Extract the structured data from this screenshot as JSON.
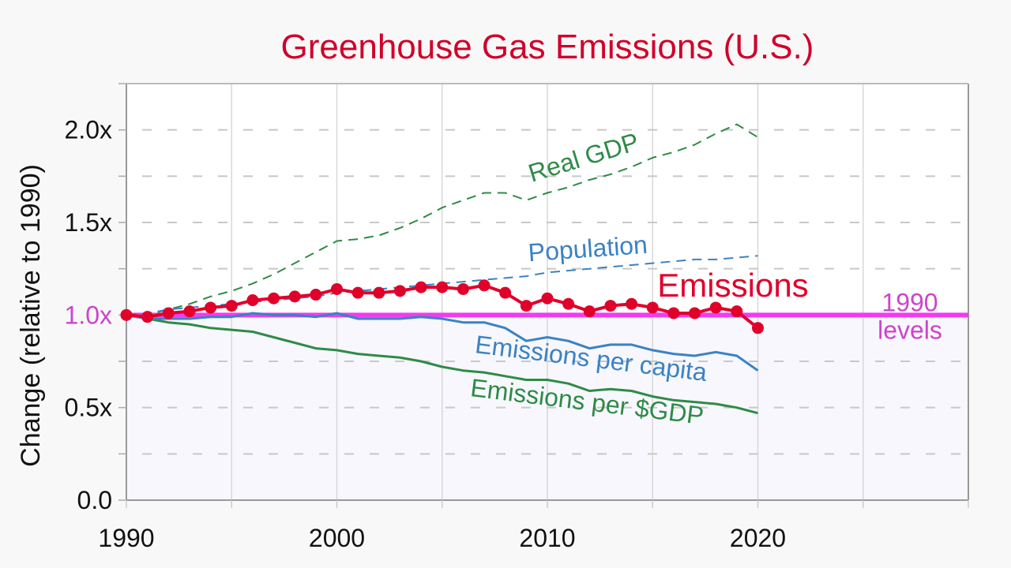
{
  "chart_data": {
    "type": "line",
    "title": "Greenhouse Gas Emissions (U.S.)",
    "xlabel": "",
    "ylabel": "Change (relative to 1990)",
    "xlim": [
      1990,
      2030
    ],
    "ylim": [
      0,
      2.25
    ],
    "x_ticks": [
      1990,
      2000,
      2010,
      2020
    ],
    "x_tick_labels": [
      "1990",
      "2000",
      "2010",
      "2020"
    ],
    "y_ticks": [
      0,
      0.5,
      1.0,
      1.5,
      2.0
    ],
    "y_tick_labels": [
      "0.0",
      "0.5x",
      "1.0x",
      "1.5x",
      "2.0x"
    ],
    "grid": true,
    "reference_line": {
      "value": 1.0,
      "label_line1": "1990",
      "label_line2": "levels",
      "color": "#f03cf0",
      "label_color": "#cc44cc"
    },
    "x": [
      1990,
      1991,
      1992,
      1993,
      1994,
      1995,
      1996,
      1997,
      1998,
      1999,
      2000,
      2001,
      2002,
      2003,
      2004,
      2005,
      2006,
      2007,
      2008,
      2009,
      2010,
      2011,
      2012,
      2013,
      2014,
      2015,
      2016,
      2017,
      2018,
      2019,
      2020
    ],
    "series": [
      {
        "name": "Real GDP",
        "label": "Real GDP",
        "color": "#2e8b46",
        "style": "dashed",
        "values": [
          1.0,
          1.0,
          1.03,
          1.06,
          1.1,
          1.13,
          1.17,
          1.22,
          1.28,
          1.34,
          1.4,
          1.41,
          1.43,
          1.47,
          1.52,
          1.58,
          1.62,
          1.66,
          1.66,
          1.62,
          1.66,
          1.69,
          1.73,
          1.76,
          1.8,
          1.85,
          1.88,
          1.92,
          1.98,
          2.03,
          1.96
        ]
      },
      {
        "name": "Population",
        "label": "Population",
        "color": "#3b82c4",
        "style": "dashed",
        "values": [
          1.0,
          1.01,
          1.03,
          1.04,
          1.05,
          1.06,
          1.07,
          1.08,
          1.09,
          1.1,
          1.12,
          1.13,
          1.14,
          1.15,
          1.16,
          1.17,
          1.18,
          1.19,
          1.2,
          1.21,
          1.23,
          1.24,
          1.25,
          1.26,
          1.27,
          1.28,
          1.29,
          1.3,
          1.3,
          1.31,
          1.32
        ]
      },
      {
        "name": "Emissions",
        "label": "Emissions",
        "color": "#e0002a",
        "style": "solid-markers",
        "values": [
          1.0,
          0.99,
          1.01,
          1.02,
          1.04,
          1.05,
          1.08,
          1.09,
          1.1,
          1.11,
          1.14,
          1.12,
          1.12,
          1.13,
          1.15,
          1.15,
          1.14,
          1.16,
          1.12,
          1.05,
          1.09,
          1.06,
          1.02,
          1.05,
          1.06,
          1.04,
          1.01,
          1.01,
          1.04,
          1.02,
          0.93
        ]
      },
      {
        "name": "Emissions per capita",
        "label": "Emissions per capita",
        "color": "#3b82c4",
        "style": "solid",
        "values": [
          1.0,
          0.98,
          0.98,
          0.98,
          0.99,
          0.99,
          1.01,
          1.0,
          1.0,
          0.99,
          1.01,
          0.98,
          0.98,
          0.98,
          0.99,
          0.98,
          0.96,
          0.96,
          0.93,
          0.86,
          0.88,
          0.86,
          0.82,
          0.84,
          0.84,
          0.81,
          0.79,
          0.78,
          0.8,
          0.78,
          0.7
        ]
      },
      {
        "name": "Emissions per $GDP",
        "label": "Emissions per $GDP",
        "color": "#2e8b46",
        "style": "solid",
        "values": [
          1.0,
          0.98,
          0.96,
          0.95,
          0.93,
          0.92,
          0.91,
          0.88,
          0.85,
          0.82,
          0.81,
          0.79,
          0.78,
          0.77,
          0.75,
          0.72,
          0.7,
          0.69,
          0.67,
          0.65,
          0.65,
          0.63,
          0.59,
          0.6,
          0.59,
          0.56,
          0.54,
          0.53,
          0.52,
          0.5,
          0.47
        ]
      }
    ]
  }
}
